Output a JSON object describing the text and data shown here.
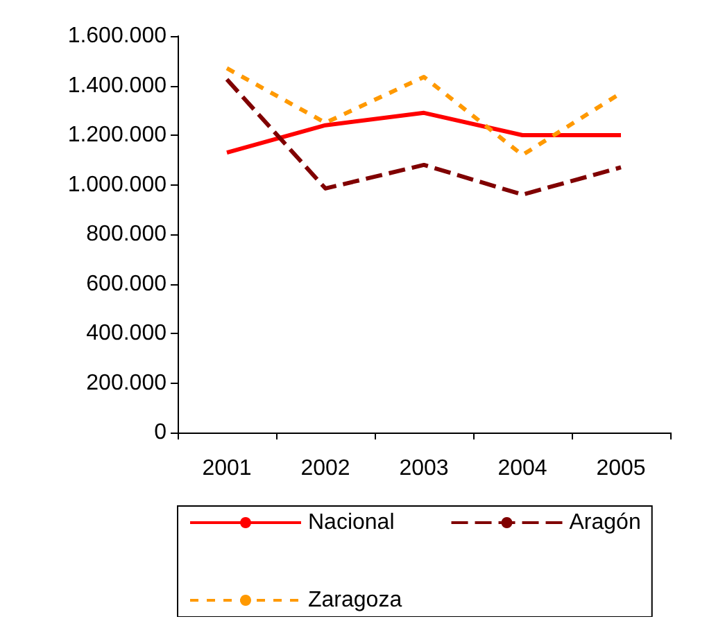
{
  "chart_data": {
    "type": "line",
    "categories": [
      "2001",
      "2002",
      "2003",
      "2004",
      "2005"
    ],
    "series": [
      {
        "name": "Nacional",
        "color": "#ff0000",
        "line_style": "solid",
        "values": [
          1130000,
          1240000,
          1290000,
          1200000,
          1200000
        ]
      },
      {
        "name": "Aragón",
        "color": "#800000",
        "line_style": "dashed",
        "values": [
          1425000,
          985000,
          1080000,
          960000,
          1070000
        ]
      },
      {
        "name": "Zaragoza",
        "color": "#ff9900",
        "line_style": "dotted",
        "values": [
          1470000,
          1250000,
          1435000,
          1120000,
          1370000
        ]
      }
    ],
    "ylim": [
      0,
      1600000
    ],
    "yticks": [
      {
        "value": 0,
        "label": "0"
      },
      {
        "value": 200000,
        "label": "200.000"
      },
      {
        "value": 400000,
        "label": "400.000"
      },
      {
        "value": 600000,
        "label": "600.000"
      },
      {
        "value": 800000,
        "label": "800.000"
      },
      {
        "value": 1000000,
        "label": "1.000.000"
      },
      {
        "value": 1200000,
        "label": "1.200.000"
      },
      {
        "value": 1400000,
        "label": "1.400.000"
      },
      {
        "value": 1600000,
        "label": "1.600.000"
      }
    ],
    "grid": false,
    "legend": "bottom",
    "marker": "none"
  }
}
